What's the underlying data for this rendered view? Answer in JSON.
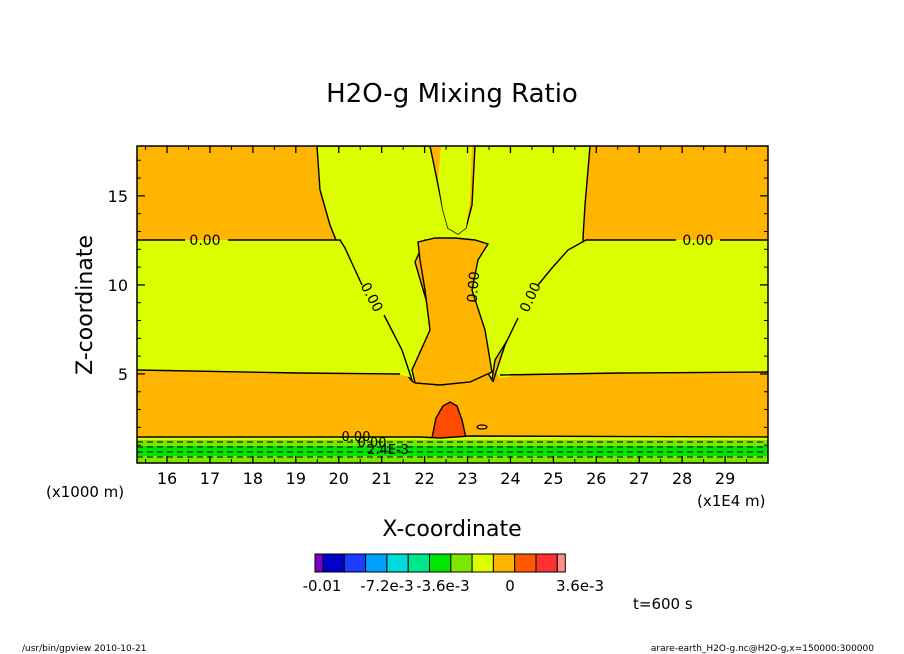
{
  "chart_data": {
    "type": "contour",
    "title": "H2O-g Mixing Ratio",
    "xlabel": "X-coordinate",
    "ylabel": "Z-coordinate",
    "x_unit_left": "(x1000 m)",
    "x_unit_right": "(x1E4 m)",
    "xlim": [
      15.3,
      30.0
    ],
    "ylim": [
      0,
      17.8
    ],
    "x_ticks": [
      16,
      17,
      18,
      19,
      20,
      21,
      22,
      23,
      24,
      25,
      26,
      27,
      28,
      29
    ],
    "y_ticks": [
      5,
      10,
      15
    ],
    "colors": {
      "orange": "#ffb400",
      "yellowgreen": "#dcff00",
      "green": "#00e600",
      "lightgreen": "#7be600",
      "red": "#ff4b00"
    },
    "contour_labels": [
      "0.00",
      "0.00",
      "0.00",
      "0.00",
      "0.00",
      "0.00",
      "0.00",
      "2.4E-3"
    ],
    "colorbar": {
      "colors": [
        "#7a00cc",
        "#0000c8",
        "#1e3cff",
        "#00a0ff",
        "#00dcdc",
        "#00e68c",
        "#00e600",
        "#7be600",
        "#dcff00",
        "#ffb400",
        "#ff5a00",
        "#ff3232",
        "#ff8c8c"
      ],
      "tick_labels": [
        "-0.01",
        "-7.2e-3",
        "-3.6e-3",
        "0",
        "3.6e-3"
      ]
    },
    "time_label": "t=600 s"
  },
  "footer": {
    "left": "/usr/bin/gpview   2010-10-21",
    "right": "arare-earth_H2O-g.nc@H2O-g,x=150000:300000"
  }
}
